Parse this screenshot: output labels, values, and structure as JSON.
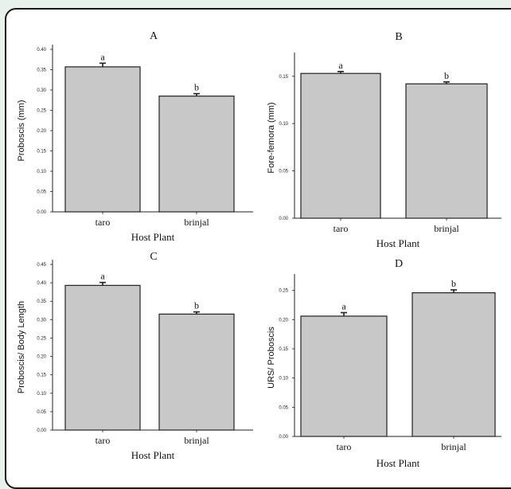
{
  "colors": {
    "bar_fill": "#c8c8c8",
    "bar_stroke": "#222222",
    "axis": "#222222",
    "page_bg": "#e8f1ec"
  },
  "chart_data": [
    {
      "panel": "A",
      "type": "bar",
      "categories": [
        "taro",
        "brinjal"
      ],
      "values": [
        0.357,
        0.285
      ],
      "errors": [
        0.009,
        0.006
      ],
      "significance": [
        "a",
        "b"
      ],
      "xlabel": "Host Plant",
      "ylabel": "Proboscis (mm)",
      "ylim": [
        0,
        0.4
      ],
      "yticks": [
        "0.00",
        "0.05",
        "0.10",
        "0.15",
        "0.20",
        "0.25",
        "0.30",
        "0.35",
        "0.40"
      ]
    },
    {
      "panel": "B",
      "type": "bar",
      "categories": [
        "taro",
        "brinjal"
      ],
      "values": [
        0.153,
        0.142
      ],
      "errors": [
        0.002,
        0.002
      ],
      "significance": [
        "a",
        "b"
      ],
      "xlabel": "Host Plant",
      "ylabel": "Fore-femora (mm)",
      "ylim": [
        0,
        0.17
      ],
      "yticks": [
        "0.00",
        "0.05",
        "0.10",
        "0.15"
      ]
    },
    {
      "panel": "C",
      "type": "bar",
      "categories": [
        "taro",
        "brinjal"
      ],
      "values": [
        0.393,
        0.315
      ],
      "errors": [
        0.008,
        0.006
      ],
      "significance": [
        "a",
        "b"
      ],
      "xlabel": "Host Plant",
      "ylabel": "Proboscis/ Body Length",
      "ylim": [
        0,
        0.45
      ],
      "yticks": [
        "0.00",
        "0.05",
        "0.10",
        "0.15",
        "0.20",
        "0.25",
        "0.30",
        "0.35",
        "0.40",
        "0.45"
      ]
    },
    {
      "panel": "D",
      "type": "bar",
      "categories": [
        "taro",
        "brinjal"
      ],
      "values": [
        0.206,
        0.246
      ],
      "errors": [
        0.006,
        0.005
      ],
      "significance": [
        "a",
        "b"
      ],
      "xlabel": "Host Plant",
      "ylabel": "URS/ Proboscis",
      "ylim": [
        0,
        0.27
      ],
      "yticks": [
        "0.00",
        "0.05",
        "0.10",
        "0.15",
        "0.20",
        "0.25"
      ]
    }
  ]
}
